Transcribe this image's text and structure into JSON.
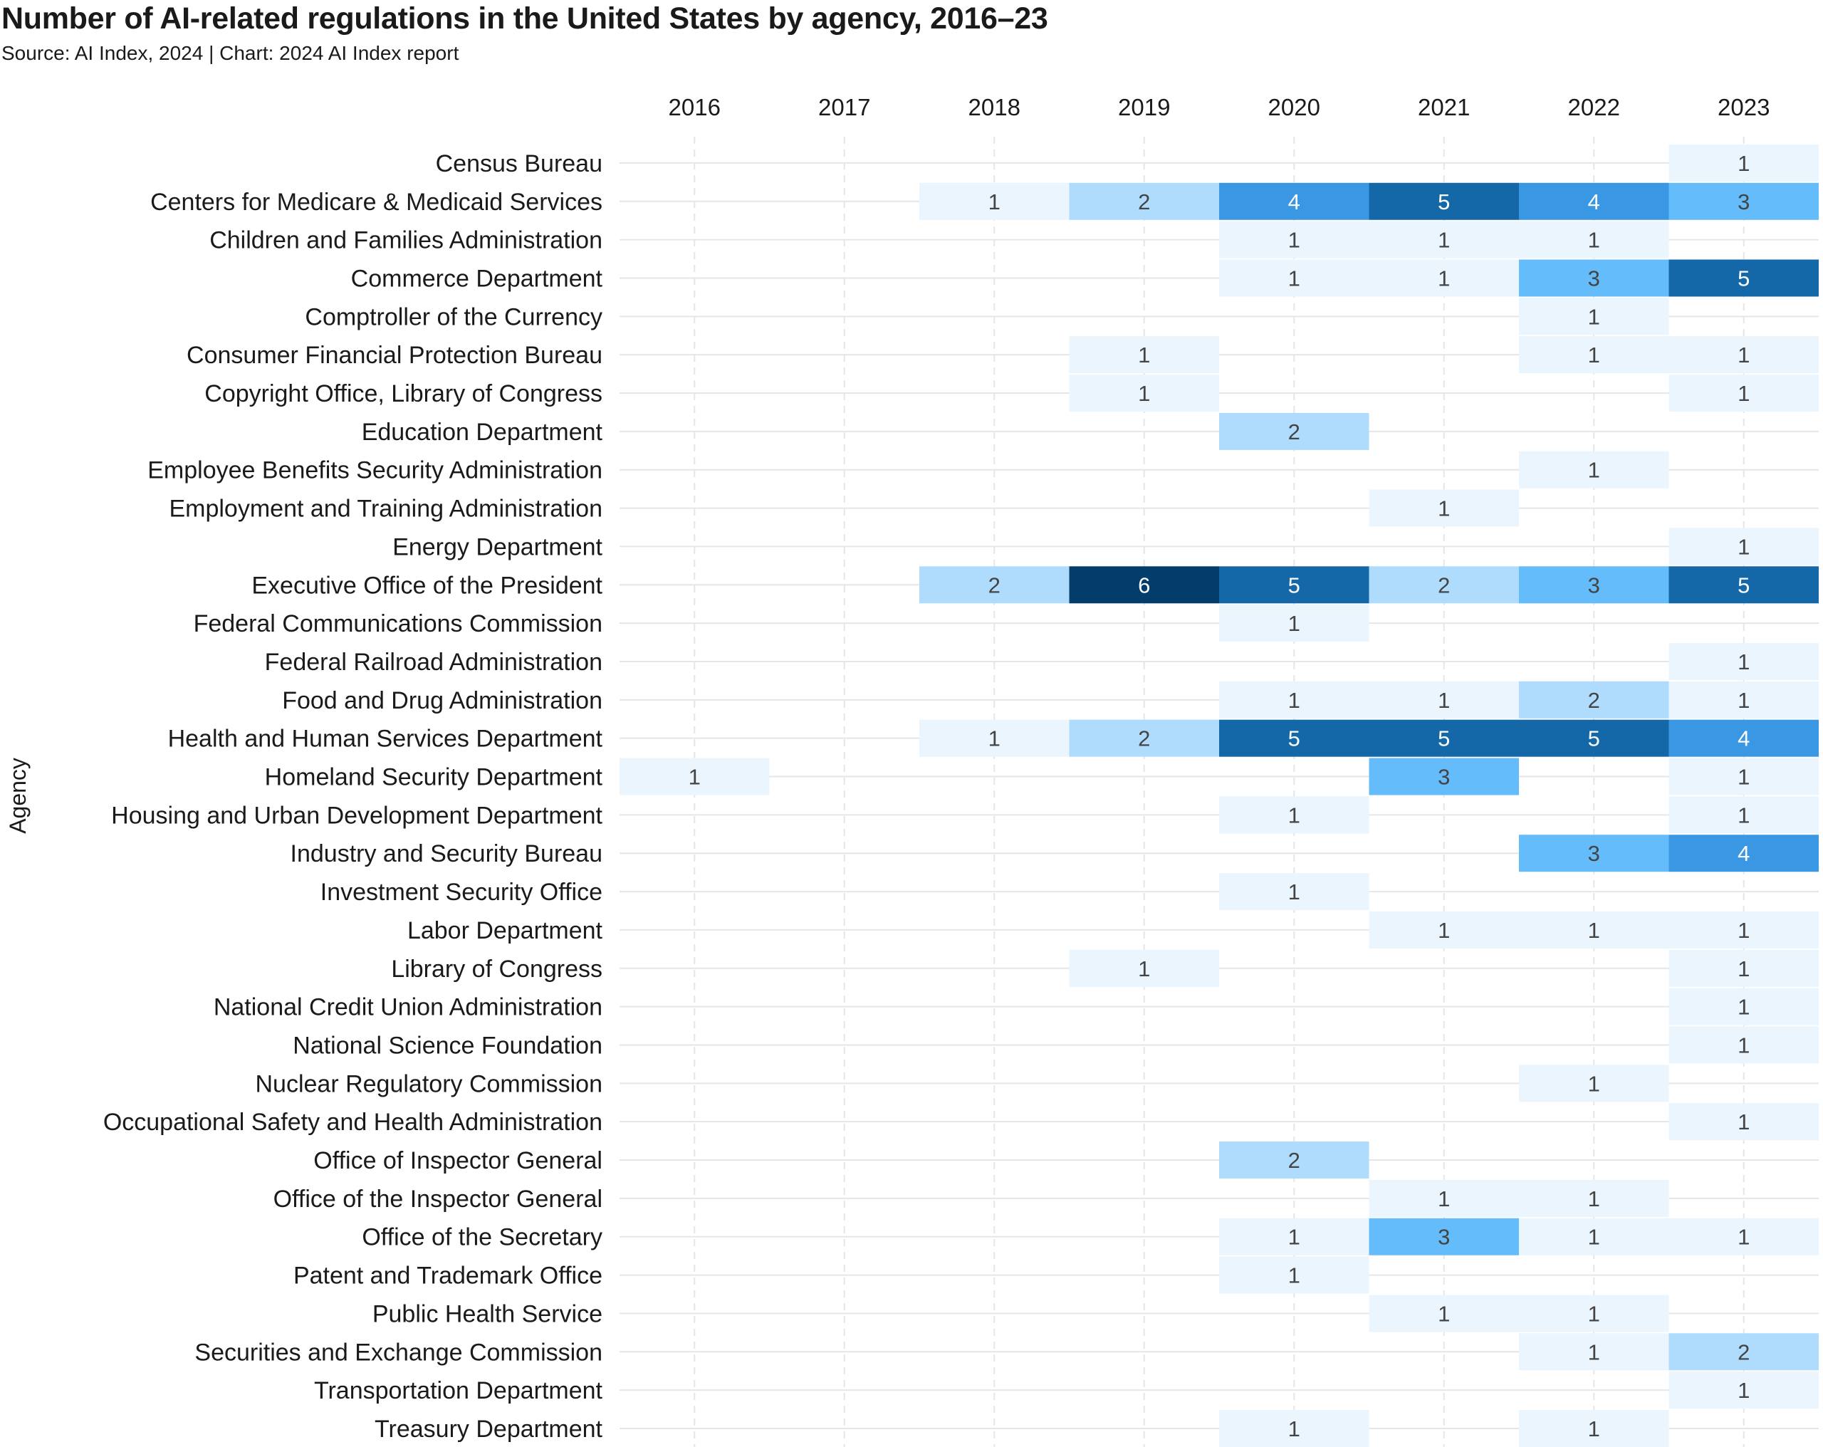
{
  "chart_data": {
    "type": "heatmap",
    "title": "Number of AI-related regulations in the United States by agency, 2016–23",
    "subtitle": "Source: AI Index, 2024 | Chart: 2024 AI Index report",
    "xlabel": "",
    "ylabel": "Agency",
    "x": [
      "2016",
      "2017",
      "2018",
      "2019",
      "2020",
      "2021",
      "2022",
      "2023"
    ],
    "y": [
      "Census Bureau",
      "Centers for Medicare & Medicaid Services",
      "Children and Families Administration",
      "Commerce Department",
      "Comptroller of the Currency",
      "Consumer Financial Protection Bureau",
      "Copyright Office, Library of Congress",
      "Education Department",
      "Employee Benefits Security Administration",
      "Employment and Training Administration",
      "Energy Department",
      "Executive Office of the President",
      "Federal Communications Commission",
      "Federal Railroad Administration",
      "Food and Drug Administration",
      "Health and Human Services Department",
      "Homeland Security Department",
      "Housing and Urban Development Department",
      "Industry and Security Bureau",
      "Investment Security Office",
      "Labor Department",
      "Library of Congress",
      "National Credit Union Administration",
      "National Science Foundation",
      "Nuclear Regulatory Commission",
      "Occupational Safety and Health Administration",
      "Office of Inspector General",
      "Office of the Inspector General",
      "Office of the Secretary",
      "Patent and Trademark Office",
      "Public Health Service",
      "Securities and Exchange Commission",
      "Transportation Department",
      "Treasury Department"
    ],
    "values": [
      [
        null,
        null,
        null,
        null,
        null,
        null,
        null,
        1
      ],
      [
        null,
        null,
        1,
        2,
        4,
        5,
        4,
        3
      ],
      [
        null,
        null,
        null,
        null,
        1,
        1,
        1,
        null
      ],
      [
        null,
        null,
        null,
        null,
        1,
        1,
        3,
        5
      ],
      [
        null,
        null,
        null,
        null,
        null,
        null,
        1,
        null
      ],
      [
        null,
        null,
        null,
        1,
        null,
        null,
        1,
        1
      ],
      [
        null,
        null,
        null,
        1,
        null,
        null,
        null,
        1
      ],
      [
        null,
        null,
        null,
        null,
        2,
        null,
        null,
        null
      ],
      [
        null,
        null,
        null,
        null,
        null,
        null,
        1,
        null
      ],
      [
        null,
        null,
        null,
        null,
        null,
        1,
        null,
        null
      ],
      [
        null,
        null,
        null,
        null,
        null,
        null,
        null,
        1
      ],
      [
        null,
        null,
        2,
        6,
        5,
        2,
        3,
        5
      ],
      [
        null,
        null,
        null,
        null,
        1,
        null,
        null,
        null
      ],
      [
        null,
        null,
        null,
        null,
        null,
        null,
        null,
        1
      ],
      [
        null,
        null,
        null,
        null,
        1,
        1,
        2,
        1
      ],
      [
        null,
        null,
        1,
        2,
        5,
        5,
        5,
        4
      ],
      [
        1,
        null,
        null,
        null,
        null,
        3,
        null,
        1
      ],
      [
        null,
        null,
        null,
        null,
        1,
        null,
        null,
        1
      ],
      [
        null,
        null,
        null,
        null,
        null,
        null,
        3,
        4
      ],
      [
        null,
        null,
        null,
        null,
        1,
        null,
        null,
        null
      ],
      [
        null,
        null,
        null,
        null,
        null,
        1,
        1,
        1
      ],
      [
        null,
        null,
        null,
        1,
        null,
        null,
        null,
        1
      ],
      [
        null,
        null,
        null,
        null,
        null,
        null,
        null,
        1
      ],
      [
        null,
        null,
        null,
        null,
        null,
        null,
        null,
        1
      ],
      [
        null,
        null,
        null,
        null,
        null,
        null,
        1,
        null
      ],
      [
        null,
        null,
        null,
        null,
        null,
        null,
        null,
        1
      ],
      [
        null,
        null,
        null,
        null,
        2,
        null,
        null,
        null
      ],
      [
        null,
        null,
        null,
        null,
        null,
        1,
        1,
        null
      ],
      [
        null,
        null,
        null,
        null,
        1,
        3,
        1,
        1
      ],
      [
        null,
        null,
        null,
        null,
        1,
        null,
        null,
        null
      ],
      [
        null,
        null,
        null,
        null,
        null,
        1,
        1,
        null
      ],
      [
        null,
        null,
        null,
        null,
        null,
        null,
        1,
        2
      ],
      [
        null,
        null,
        null,
        null,
        null,
        null,
        null,
        1
      ],
      [
        null,
        null,
        null,
        null,
        1,
        null,
        1,
        null
      ]
    ],
    "x_axis_position": "top",
    "grid": true,
    "legend": "none",
    "color_scale": {
      "1": "#eaf5fd",
      "2": "#afdcfc",
      "3": "#64bcfa",
      "4": "#3a97e4",
      "5": "#1568a8",
      "6": "#023d6c"
    },
    "text_colors": {
      "light": "#ffffff",
      "dark": "#444444"
    },
    "grid_color": "#e6e6e6"
  }
}
